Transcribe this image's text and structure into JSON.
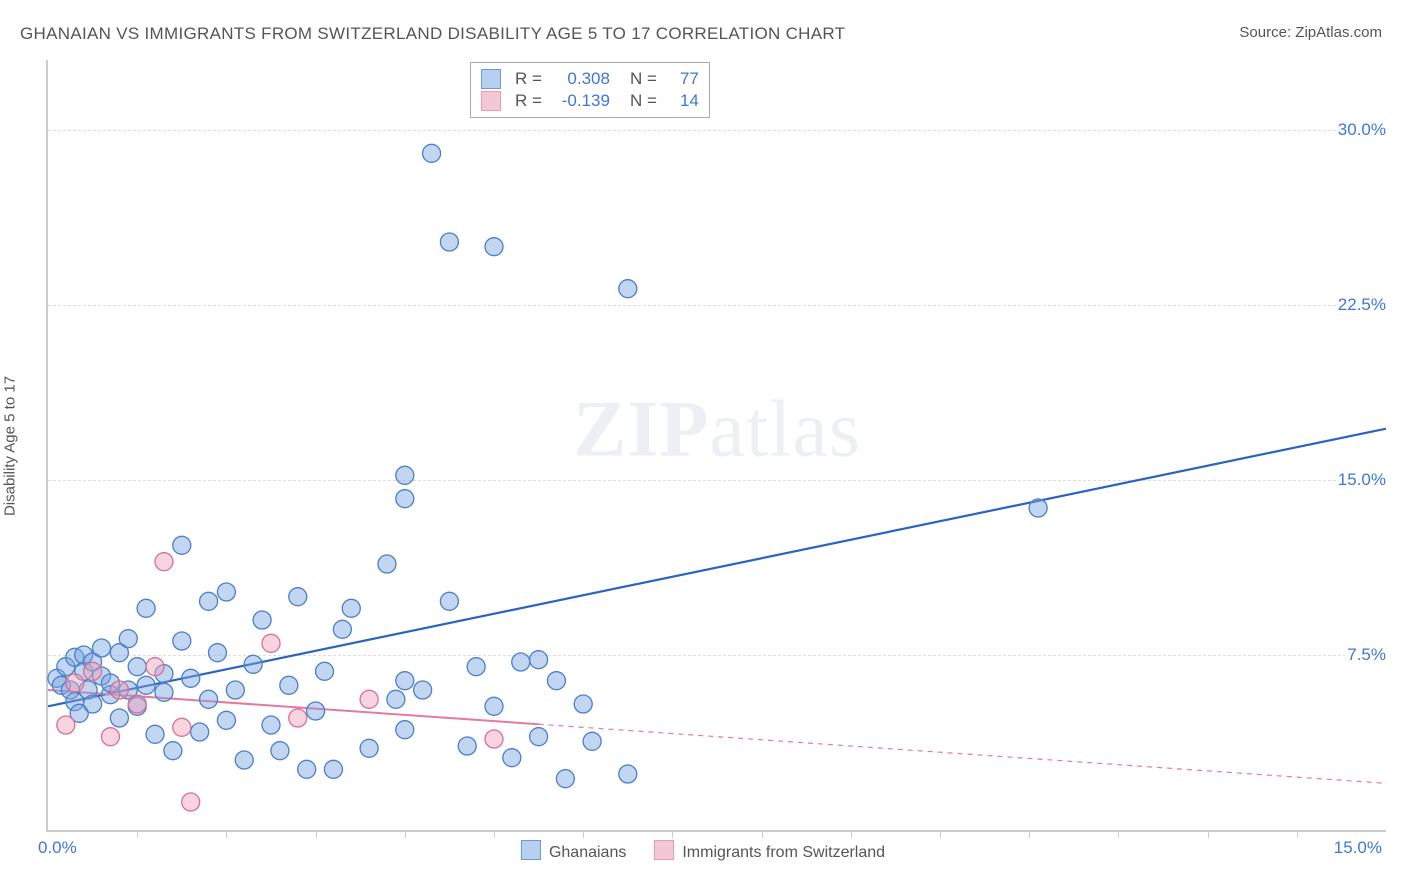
{
  "title": "GHANAIAN VS IMMIGRANTS FROM SWITZERLAND DISABILITY AGE 5 TO 17 CORRELATION CHART",
  "source_label": "Source: ",
  "source_name": "ZipAtlas.com",
  "y_axis_label": "Disability Age 5 to 17",
  "watermark_a": "ZIP",
  "watermark_b": "atlas",
  "chart": {
    "type": "scatter",
    "xlim": [
      0,
      15
    ],
    "ylim": [
      0,
      33
    ],
    "y_ticks": [
      7.5,
      15.0,
      22.5,
      30.0
    ],
    "y_tick_labels": [
      "7.5%",
      "15.0%",
      "22.5%",
      "30.0%"
    ],
    "x_origin_label": "0.0%",
    "x_end_label": "15.0%",
    "x_minor_ticks": [
      1,
      2,
      3,
      4,
      5,
      6,
      7,
      8,
      9,
      10,
      11,
      12,
      13,
      14
    ],
    "grid_color": "#dddddd",
    "axis_color": "#cccccc",
    "tick_label_color": "#3d78d6",
    "background_color": "#ffffff",
    "marker_radius": 9,
    "marker_stroke_width": 1.3,
    "series": [
      {
        "name": "Ghanaians",
        "fill": "rgba(120,165,225,0.45)",
        "stroke": "#4a7fc9",
        "swatch_fill": "#b7d0ef",
        "swatch_border": "#6a9bd8",
        "r_label": "R =",
        "r_value": "0.308",
        "n_label": "N =",
        "n_value": "77",
        "trend": {
          "x1": 0,
          "y1": 5.3,
          "x2": 15,
          "y2": 17.2,
          "solid_until": 15,
          "color": "#2b63c0",
          "width": 2.2
        },
        "points": [
          [
            0.1,
            6.5
          ],
          [
            0.15,
            6.2
          ],
          [
            0.2,
            7.0
          ],
          [
            0.25,
            6.0
          ],
          [
            0.3,
            7.4
          ],
          [
            0.3,
            5.5
          ],
          [
            0.35,
            5.0
          ],
          [
            0.4,
            6.8
          ],
          [
            0.4,
            7.5
          ],
          [
            0.45,
            6.0
          ],
          [
            0.5,
            5.4
          ],
          [
            0.5,
            7.2
          ],
          [
            0.6,
            6.6
          ],
          [
            0.6,
            7.8
          ],
          [
            0.7,
            5.8
          ],
          [
            0.7,
            6.3
          ],
          [
            0.8,
            4.8
          ],
          [
            0.8,
            7.6
          ],
          [
            0.9,
            6.0
          ],
          [
            0.9,
            8.2
          ],
          [
            1.0,
            5.3
          ],
          [
            1.0,
            7.0
          ],
          [
            1.1,
            9.5
          ],
          [
            1.1,
            6.2
          ],
          [
            1.2,
            4.1
          ],
          [
            1.3,
            5.9
          ],
          [
            1.3,
            6.7
          ],
          [
            1.4,
            3.4
          ],
          [
            1.5,
            8.1
          ],
          [
            1.5,
            12.2
          ],
          [
            1.6,
            6.5
          ],
          [
            1.7,
            4.2
          ],
          [
            1.8,
            5.6
          ],
          [
            1.8,
            9.8
          ],
          [
            1.9,
            7.6
          ],
          [
            2.0,
            4.7
          ],
          [
            2.0,
            10.2
          ],
          [
            2.1,
            6.0
          ],
          [
            2.2,
            3.0
          ],
          [
            2.3,
            7.1
          ],
          [
            2.4,
            9.0
          ],
          [
            2.5,
            4.5
          ],
          [
            2.6,
            3.4
          ],
          [
            2.7,
            6.2
          ],
          [
            2.8,
            10.0
          ],
          [
            2.9,
            2.6
          ],
          [
            3.0,
            5.1
          ],
          [
            3.1,
            6.8
          ],
          [
            3.2,
            2.6
          ],
          [
            3.3,
            8.6
          ],
          [
            3.4,
            9.5
          ],
          [
            3.6,
            3.5
          ],
          [
            3.8,
            11.4
          ],
          [
            3.9,
            5.6
          ],
          [
            4.0,
            4.3
          ],
          [
            4.0,
            15.2
          ],
          [
            4.0,
            14.2
          ],
          [
            4.2,
            6.0
          ],
          [
            4.3,
            29.0
          ],
          [
            4.5,
            9.8
          ],
          [
            4.5,
            25.2
          ],
          [
            4.7,
            3.6
          ],
          [
            4.8,
            7.0
          ],
          [
            5.0,
            5.3
          ],
          [
            5.0,
            25.0
          ],
          [
            5.2,
            3.1
          ],
          [
            5.3,
            7.2
          ],
          [
            5.5,
            7.3
          ],
          [
            5.5,
            4.0
          ],
          [
            5.7,
            6.4
          ],
          [
            5.8,
            2.2
          ],
          [
            6.0,
            5.4
          ],
          [
            6.1,
            3.8
          ],
          [
            6.5,
            23.2
          ],
          [
            6.5,
            2.4
          ],
          [
            11.1,
            13.8
          ],
          [
            4.0,
            6.4
          ]
        ]
      },
      {
        "name": "Immigrants from Switzerland",
        "fill": "rgba(240,160,185,0.45)",
        "stroke": "#d86f94",
        "swatch_fill": "#f3c7d6",
        "swatch_border": "#e79cb8",
        "r_label": "R =",
        "r_value": "-0.139",
        "n_label": "N =",
        "n_value": "14",
        "trend": {
          "x1": 0,
          "y1": 6.0,
          "x2": 15,
          "y2": 2.0,
          "solid_until": 5.5,
          "color": "#e57aa0",
          "width": 2
        },
        "points": [
          [
            0.2,
            4.5
          ],
          [
            0.3,
            6.3
          ],
          [
            0.5,
            6.8
          ],
          [
            0.7,
            4.0
          ],
          [
            0.8,
            6.0
          ],
          [
            1.0,
            5.4
          ],
          [
            1.2,
            7.0
          ],
          [
            1.3,
            11.5
          ],
          [
            1.5,
            4.4
          ],
          [
            1.6,
            1.2
          ],
          [
            2.5,
            8.0
          ],
          [
            2.8,
            4.8
          ],
          [
            3.6,
            5.6
          ],
          [
            5.0,
            3.9
          ]
        ]
      }
    ]
  },
  "bottom_legend": [
    {
      "label": "Ghanaians"
    },
    {
      "label": "Immigrants from Switzerland"
    }
  ]
}
